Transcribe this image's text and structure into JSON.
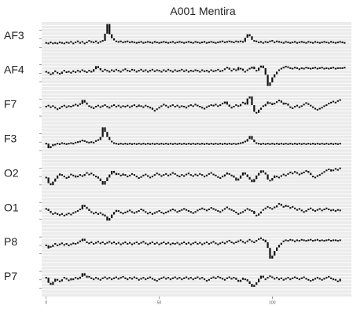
{
  "chart_data": {
    "type": "line",
    "title": "A001 Mentira",
    "xlabel": "",
    "ylabel": "",
    "x_ticks": [
      "0",
      "50",
      "100"
    ],
    "xlim": [
      -2,
      135
    ],
    "ylim": [
      -3,
      3
    ],
    "grid": true,
    "legend": "none",
    "panel_background": "#ebebeb",
    "grid_color": "#ffffff",
    "mark_color": "#111111",
    "series": [
      {
        "name": "AF3",
        "values": [
          -0.8,
          -0.9,
          -0.7,
          -0.9,
          -0.8,
          -0.9,
          -0.7,
          -0.8,
          -0.9,
          -0.7,
          -0.8,
          -0.6,
          -0.9,
          -0.7,
          -0.5,
          -0.8,
          -0.6,
          -0.9,
          -0.7,
          -0.4,
          -0.6,
          -0.7,
          -0.5,
          -0.8,
          -0.6,
          -0.4,
          1.0,
          2.9,
          0.9,
          0.1,
          -0.3,
          -0.5,
          -0.6,
          -0.5,
          -0.7,
          -0.6,
          -0.5,
          -0.7,
          -0.6,
          -0.7,
          -0.8,
          -0.7,
          -0.6,
          -0.8,
          -0.7,
          -0.6,
          -0.7,
          -0.8,
          -0.6,
          -0.7,
          -0.8,
          -0.7,
          -0.6,
          -0.7,
          -0.8,
          -0.7,
          -0.6,
          -0.8,
          -0.7,
          -0.6,
          -0.7,
          -0.8,
          -0.7,
          -0.6,
          -0.7,
          -0.8,
          -0.6,
          -0.7,
          -0.8,
          -0.7,
          -0.6,
          -0.8,
          -0.7,
          -0.6,
          -0.7,
          -0.8,
          -0.7,
          -0.6,
          -0.5,
          -0.7,
          -0.6,
          -0.5,
          -0.6,
          -0.7,
          -0.5,
          -0.6,
          -0.5,
          -0.6,
          0.2,
          0.9,
          0.5,
          -0.2,
          -0.4,
          -0.5,
          -0.7,
          -0.6,
          -0.8,
          -0.6,
          -0.7,
          -0.5,
          -0.4,
          -0.7,
          -0.5,
          -0.6,
          -0.7,
          -0.8,
          -0.6,
          -0.7,
          -0.8,
          -0.7,
          -0.6,
          -0.8,
          -0.7,
          -0.6,
          -0.7,
          -0.8,
          -0.6,
          -0.7,
          -0.8,
          -0.6,
          -0.7,
          -0.8,
          -0.7,
          -0.6,
          -0.7,
          -0.8,
          -0.6,
          -0.7,
          -0.8,
          -0.7,
          -0.6,
          -0.7,
          -0.8
        ]
      },
      {
        "name": "AF4",
        "values": [
          0.3,
          0.1,
          -0.2,
          0.2,
          0.4,
          0.1,
          -0.1,
          0.3,
          0.5,
          0.2,
          0.3,
          0.1,
          0.4,
          0.2,
          0.5,
          0.3,
          0.6,
          0.4,
          0.2,
          0.5,
          0.3,
          0.8,
          1.4,
          1.0,
          0.6,
          0.4,
          0.7,
          0.5,
          0.3,
          0.6,
          0.4,
          0.7,
          0.5,
          0.3,
          0.6,
          0.8,
          0.5,
          0.4,
          0.7,
          0.6,
          0.3,
          0.5,
          0.7,
          0.4,
          0.6,
          0.3,
          0.5,
          0.7,
          0.4,
          0.6,
          0.5,
          0.3,
          0.6,
          0.4,
          0.7,
          0.5,
          0.3,
          0.6,
          0.4,
          0.5,
          0.7,
          0.4,
          0.6,
          0.3,
          0.5,
          0.4,
          0.6,
          0.5,
          0.3,
          0.6,
          0.4,
          0.5,
          0.3,
          0.6,
          0.4,
          0.5,
          0.7,
          0.4,
          0.5,
          0.8,
          1.1,
          0.7,
          0.5,
          0.8,
          0.6,
          1.2,
          0.9,
          0.5,
          0.3,
          0.6,
          0.9,
          1.3,
          0.8,
          0.5,
          1.1,
          1.5,
          1.0,
          -0.3,
          -2.5,
          -1.8,
          -0.8,
          -0.2,
          0.3,
          0.6,
          0.9,
          1.1,
          1.3,
          1.2,
          1.0,
          0.9,
          1.1,
          1.0,
          0.8,
          1.0,
          0.9,
          1.1,
          1.0,
          0.9,
          1.0,
          1.1,
          0.9,
          1.0,
          1.1,
          0.9,
          1.0,
          0.9,
          1.0,
          1.1,
          0.9,
          1.0,
          1.0,
          1.0,
          1.1
        ]
      },
      {
        "name": "F7",
        "values": [
          0.2,
          0.4,
          0.1,
          0.3,
          0.0,
          -0.3,
          -0.1,
          0.2,
          0.4,
          0.1,
          0.3,
          0.2,
          0.4,
          0.6,
          0.4,
          0.7,
          1.5,
          1.0,
          0.6,
          0.3,
          0.1,
          -0.1,
          0.2,
          0.4,
          0.1,
          0.3,
          0.5,
          0.2,
          0.0,
          0.3,
          0.5,
          0.2,
          0.4,
          0.1,
          0.3,
          0.2,
          0.4,
          0.1,
          0.3,
          0.5,
          0.2,
          0.6,
          0.3,
          0.1,
          0.4,
          0.2,
          0.0,
          -0.4,
          -0.6,
          -0.3,
          0.0,
          0.3,
          0.6,
          0.4,
          0.1,
          0.3,
          0.5,
          0.2,
          0.4,
          0.1,
          0.3,
          0.2,
          0.0,
          0.3,
          0.5,
          0.3,
          0.6,
          0.4,
          0.2,
          0.0,
          -0.2,
          0.1,
          0.3,
          0.5,
          0.4,
          0.6,
          0.3,
          0.5,
          0.8,
          1.2,
          0.6,
          0.2,
          0.0,
          0.2,
          0.5,
          0.3,
          0.7,
          1.0,
          0.6,
          1.8,
          2.2,
          0.5,
          -0.8,
          -1.0,
          -0.4,
          0.0,
          0.3,
          0.7,
          1.2,
          0.9,
          0.5,
          0.8,
          1.1,
          1.4,
          1.0,
          0.6,
          0.8,
          0.4,
          0.1,
          -0.1,
          0.2,
          0.4,
          0.1,
          0.3,
          0.6,
          0.9,
          0.7,
          0.4,
          0.1,
          -0.2,
          -0.4,
          -0.2,
          0.0,
          0.3,
          0.5,
          0.8,
          1.0,
          1.2,
          1.0,
          1.3,
          1.5
        ]
      },
      {
        "name": "F3",
        "values": [
          -0.3,
          -1.2,
          -0.8,
          -0.4,
          -0.5,
          -0.3,
          -0.4,
          -0.2,
          -0.3,
          -0.4,
          -0.3,
          -0.2,
          -0.3,
          -0.1,
          0.0,
          0.1,
          0.3,
          0.2,
          0.0,
          -0.1,
          0.0,
          -0.1,
          0.2,
          0.4,
          1.0,
          2.9,
          2.0,
          1.0,
          0.4,
          0.1,
          -0.2,
          -0.3,
          -0.4,
          -0.3,
          -0.4,
          -0.3,
          -0.4,
          -0.3,
          -0.4,
          -0.3,
          -0.4,
          -0.3,
          -0.4,
          -0.3,
          -0.4,
          -0.3,
          -0.4,
          -0.3,
          -0.4,
          -0.3,
          -0.4,
          -0.3,
          -0.4,
          -0.3,
          -0.4,
          -0.3,
          -0.4,
          -0.3,
          -0.4,
          -0.3,
          -0.4,
          -0.3,
          -0.4,
          -0.3,
          -0.4,
          -0.3,
          -0.4,
          -0.3,
          -0.4,
          -0.3,
          -0.4,
          -0.3,
          -0.4,
          -0.3,
          -0.4,
          -0.3,
          -0.4,
          -0.3,
          -0.4,
          -0.3,
          -0.4,
          -0.3,
          -0.4,
          -0.3,
          -0.4,
          -0.3,
          -0.2,
          -0.1,
          0.1,
          0.6,
          1.2,
          0.5,
          0.0,
          -0.2,
          -0.3,
          -0.4,
          -0.3,
          -0.4,
          -0.3,
          -0.4,
          -0.3,
          -0.4,
          -0.3,
          -0.4,
          -0.3,
          -0.4,
          -0.3,
          -0.4,
          -0.3,
          -0.4,
          -0.3,
          -0.4,
          -0.3,
          -0.4,
          -0.3,
          -0.4,
          -0.3,
          -0.4,
          -0.3,
          -0.4,
          -0.3,
          -0.4,
          -0.3,
          -0.4,
          -0.3,
          -0.4,
          -0.3,
          -0.4,
          -0.3,
          -0.4,
          -0.3
        ]
      },
      {
        "name": "O2",
        "values": [
          -0.2,
          -1.3,
          -1.7,
          -1.0,
          -0.4,
          0.2,
          0.6,
          0.3,
          0.0,
          -0.3,
          0.1,
          0.4,
          0.2,
          -0.2,
          0.0,
          0.3,
          0.1,
          0.5,
          0.7,
          0.4,
          0.6,
          0.3,
          0.0,
          -0.4,
          -0.9,
          -1.6,
          -0.9,
          -0.2,
          0.4,
          1.1,
          0.7,
          0.3,
          0.5,
          0.2,
          0.6,
          0.3,
          0.0,
          0.2,
          0.5,
          0.3,
          0.0,
          -0.3,
          -0.1,
          0.2,
          0.4,
          0.1,
          -0.2,
          0.0,
          0.3,
          0.6,
          0.4,
          0.1,
          0.3,
          0.5,
          0.2,
          0.4,
          0.7,
          0.5,
          0.2,
          0.0,
          0.3,
          0.1,
          0.4,
          0.6,
          0.3,
          0.1,
          0.4,
          0.2,
          0.5,
          0.3,
          0.0,
          0.2,
          0.5,
          0.7,
          0.4,
          0.2,
          -0.1,
          -0.3,
          0.0,
          0.4,
          0.8,
          0.5,
          0.2,
          -0.2,
          -0.8,
          -0.4,
          0.2,
          0.8,
          0.4,
          -0.1,
          -0.6,
          -1.1,
          -0.5,
          0.2,
          0.7,
          1.2,
          0.8,
          0.4,
          -0.6,
          -0.8,
          -0.3,
          0.2,
          0.0,
          -0.2,
          0.1,
          0.4,
          0.2,
          0.5,
          0.8,
          0.6,
          0.9,
          0.7,
          0.4,
          0.6,
          0.8,
          1.1,
          0.7,
          0.3,
          0.0,
          -0.2,
          0.1,
          0.3,
          0.6,
          0.9,
          1.2,
          1.4,
          1.0,
          1.2,
          1.5,
          1.3,
          1.6
        ]
      },
      {
        "name": "O1",
        "values": [
          0.4,
          0.0,
          -0.4,
          -0.6,
          -0.4,
          -0.6,
          -0.8,
          -0.6,
          -0.9,
          -0.7,
          -0.5,
          -0.7,
          -0.4,
          -0.2,
          0.0,
          0.3,
          1.2,
          0.8,
          0.4,
          0.0,
          -0.2,
          -0.5,
          -0.3,
          -0.6,
          -0.4,
          -0.7,
          -1.1,
          -1.9,
          -1.4,
          -0.7,
          -0.2,
          0.2,
          0.0,
          -0.3,
          -0.5,
          -0.3,
          -0.1,
          0.1,
          -0.2,
          -0.4,
          -0.2,
          0.0,
          0.3,
          0.1,
          -0.2,
          -0.5,
          -0.3,
          -0.6,
          -0.4,
          -0.2,
          0.0,
          -0.3,
          -0.5,
          -0.3,
          -0.1,
          0.1,
          0.3,
          0.1,
          -0.2,
          0.0,
          0.2,
          0.4,
          0.2,
          0.0,
          -0.2,
          -0.4,
          -0.2,
          0.1,
          0.3,
          0.5,
          0.3,
          0.1,
          0.3,
          0.6,
          0.4,
          0.2,
          0.0,
          -0.2,
          0.1,
          0.4,
          0.7,
          0.4,
          0.2,
          0.0,
          -0.3,
          -0.6,
          -0.4,
          -0.2,
          0.1,
          0.4,
          0.2,
          0.0,
          -0.6,
          -0.9,
          -0.5,
          -0.1,
          0.2,
          0.5,
          0.8,
          0.6,
          0.4,
          0.7,
          1.1,
          1.4,
          1.0,
          0.8,
          1.2,
          0.9,
          0.6,
          0.8,
          0.5,
          0.2,
          0.4,
          0.1,
          -0.2,
          0.0,
          0.3,
          0.5,
          0.2,
          0.0,
          0.2,
          0.4,
          0.1,
          0.3,
          0.5,
          0.3,
          0.1,
          0.2,
          0.0,
          0.2,
          0.1
        ]
      },
      {
        "name": "P8",
        "values": [
          0.0,
          -0.6,
          -0.3,
          0.1,
          0.3,
          0.0,
          0.2,
          0.4,
          0.1,
          0.3,
          0.0,
          0.2,
          0.4,
          0.3,
          0.5,
          0.8,
          1.3,
          0.9,
          0.6,
          0.4,
          0.6,
          0.3,
          0.5,
          0.7,
          0.4,
          0.6,
          0.3,
          0.5,
          0.7,
          0.4,
          0.6,
          0.3,
          0.5,
          0.2,
          0.4,
          0.6,
          0.3,
          0.5,
          0.2,
          0.4,
          0.6,
          0.3,
          0.5,
          0.7,
          0.4,
          0.2,
          0.4,
          0.6,
          0.3,
          0.5,
          0.2,
          0.4,
          0.6,
          0.3,
          0.5,
          0.2,
          0.4,
          0.3,
          0.5,
          0.2,
          0.4,
          0.6,
          0.3,
          0.5,
          0.2,
          0.4,
          0.6,
          0.3,
          0.5,
          0.2,
          0.4,
          0.6,
          0.3,
          0.5,
          0.7,
          0.4,
          0.2,
          0.4,
          0.6,
          0.4,
          0.7,
          0.9,
          0.6,
          0.4,
          0.6,
          0.8,
          1.0,
          0.7,
          0.5,
          0.8,
          1.1,
          0.8,
          0.6,
          0.9,
          1.2,
          1.4,
          1.1,
          0.6,
          -0.5,
          -2.6,
          -2.0,
          -1.1,
          -0.4,
          0.1,
          0.5,
          0.8,
          1.0,
          0.9,
          1.1,
          1.0,
          0.8,
          1.0,
          0.9,
          1.1,
          1.0,
          0.9,
          1.0,
          1.1,
          0.9,
          1.0,
          1.1,
          0.9,
          1.0,
          0.9,
          1.0,
          1.1,
          0.9,
          1.0,
          1.0,
          0.9,
          1.0
        ]
      },
      {
        "name": "P7",
        "values": [
          0.4,
          -0.6,
          -1.0,
          -0.4,
          0.2,
          0.0,
          -0.3,
          0.1,
          0.4,
          0.2,
          -0.1,
          0.3,
          0.1,
          0.4,
          0.2,
          0.6,
          1.3,
          0.8,
          0.4,
          0.6,
          0.3,
          0.1,
          0.4,
          0.2,
          0.0,
          0.3,
          0.5,
          0.2,
          0.4,
          0.1,
          0.3,
          0.5,
          0.2,
          0.4,
          0.6,
          0.3,
          0.1,
          0.4,
          0.2,
          0.5,
          0.3,
          0.0,
          0.2,
          0.4,
          0.1,
          0.3,
          0.5,
          0.2,
          0.0,
          -0.2,
          0.1,
          0.3,
          0.5,
          0.2,
          0.4,
          0.1,
          0.3,
          0.5,
          0.2,
          0.4,
          0.1,
          0.3,
          0.5,
          0.2,
          0.4,
          0.1,
          0.3,
          0.5,
          0.2,
          0.4,
          0.1,
          -0.2,
          0.0,
          0.3,
          0.5,
          0.3,
          0.6,
          0.4,
          0.2,
          0.0,
          0.3,
          0.5,
          0.2,
          0.4,
          0.0,
          -0.4,
          0.0,
          0.4,
          0.1,
          -0.3,
          -0.8,
          -1.4,
          -1.0,
          -0.5,
          0.2,
          0.8,
          0.4,
          0.1,
          0.4,
          0.7,
          0.5,
          0.2,
          0.4,
          0.1,
          0.3,
          0.0,
          0.2,
          0.4,
          0.1,
          0.3,
          0.5,
          0.3,
          0.1,
          0.3,
          0.5,
          0.2,
          0.0,
          -0.2,
          0.0,
          0.2,
          0.4,
          0.2,
          0.0,
          0.2,
          0.4,
          0.6,
          0.3,
          0.1,
          0.0,
          -0.3,
          0.2
        ]
      }
    ]
  }
}
